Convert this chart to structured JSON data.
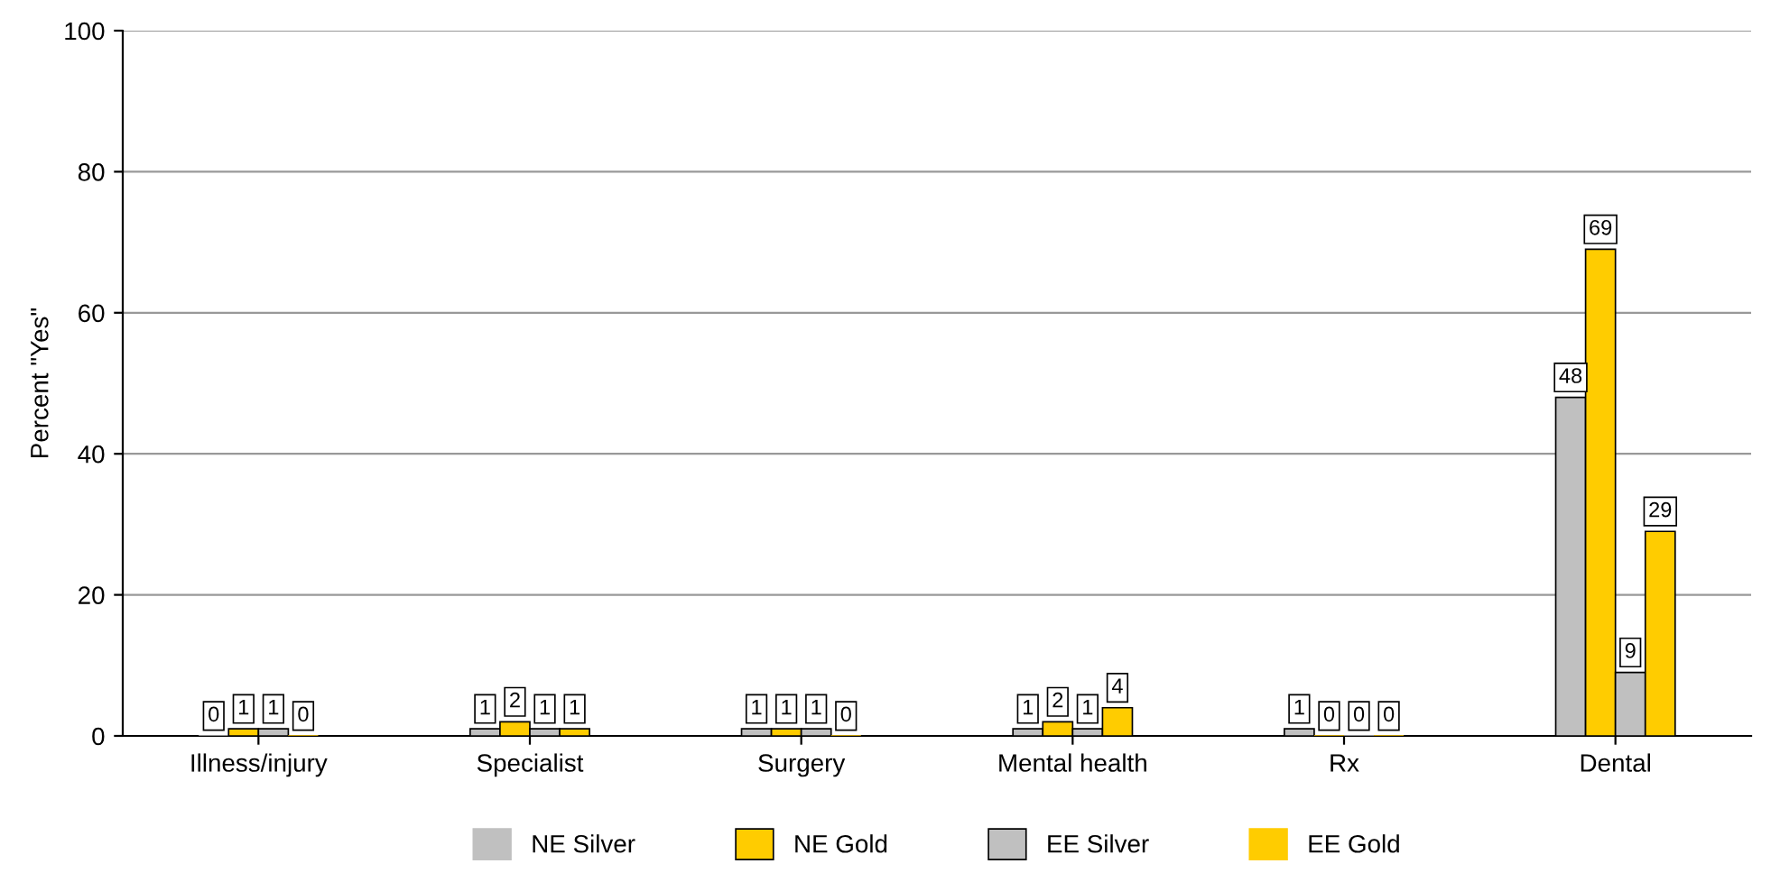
{
  "chart_data": {
    "type": "bar",
    "ylabel": "Percent \"Yes\"",
    "categories": [
      "Illness/injury",
      "Specialist",
      "Surgery",
      "Mental health",
      "Rx",
      "Dental"
    ],
    "series": [
      {
        "name": "NE Silver",
        "color": "#c0c0c0",
        "values": [
          0,
          1,
          1,
          1,
          1,
          48
        ]
      },
      {
        "name": "NE Gold",
        "color": "#ffcc00",
        "values": [
          1,
          2,
          1,
          2,
          0,
          69
        ]
      },
      {
        "name": "EE Silver",
        "color": "#c0c0c0",
        "values": [
          1,
          1,
          1,
          1,
          0,
          9
        ]
      },
      {
        "name": "EE Gold",
        "color": "#ffcc00",
        "values": [
          0,
          1,
          0,
          4,
          0,
          29
        ]
      }
    ],
    "ylim": [
      0,
      100
    ],
    "yticks": [
      0,
      20,
      40,
      60,
      80,
      100
    ],
    "grid": "y",
    "legend": "bottom",
    "data_labels": true
  }
}
